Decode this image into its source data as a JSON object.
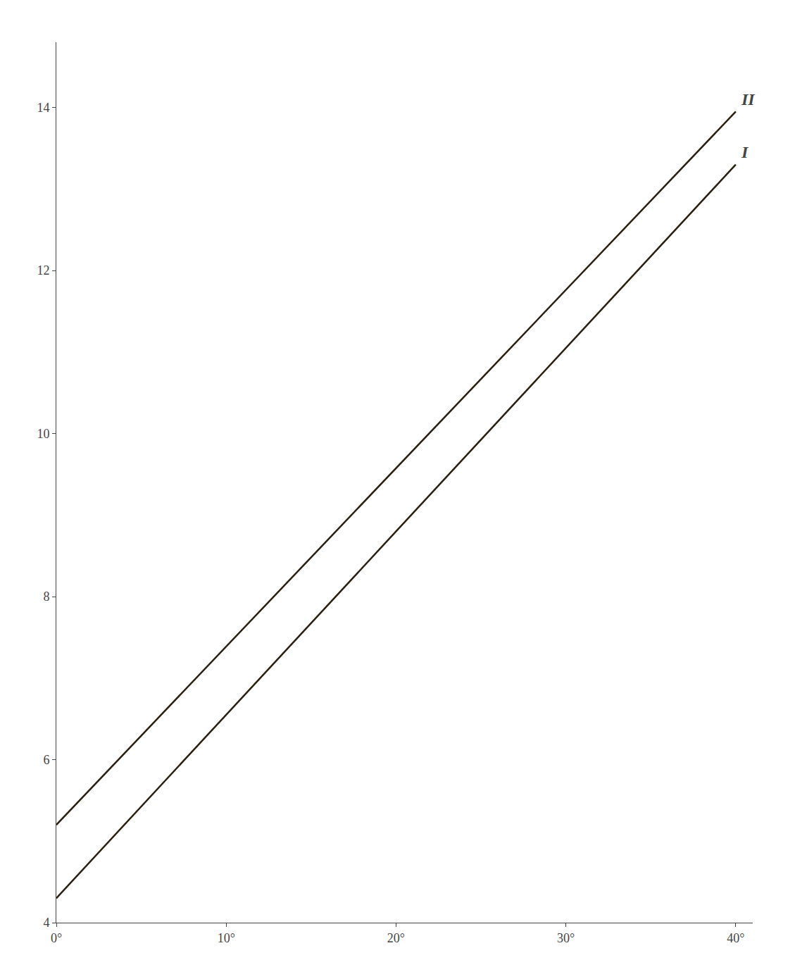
{
  "chart_data": {
    "type": "line",
    "x": [
      0,
      40
    ],
    "series": [
      {
        "values": [
          4.3,
          13.3
        ],
        "color": "#2a1f0e"
      },
      {
        "values": [
          5.2,
          13.95
        ],
        "color": "#2a1f0e"
      }
    ],
    "annotations": [
      {
        "text": "II",
        "x": 40.2,
        "y": 14.1
      },
      {
        "text": "I",
        "x": 40.2,
        "y": 13.45
      }
    ],
    "xlim": [
      0,
      41
    ],
    "xticks": [
      {
        "value": 0,
        "label": "0°"
      },
      {
        "value": 10,
        "label": "10°"
      },
      {
        "value": 20,
        "label": "20°"
      },
      {
        "value": 30,
        "label": "30°"
      },
      {
        "value": 40,
        "label": "40°"
      }
    ],
    "ylim": [
      4,
      14.8
    ],
    "yticks": [
      4,
      6,
      8,
      10,
      12,
      14
    ],
    "grid": false,
    "legend": false
  }
}
